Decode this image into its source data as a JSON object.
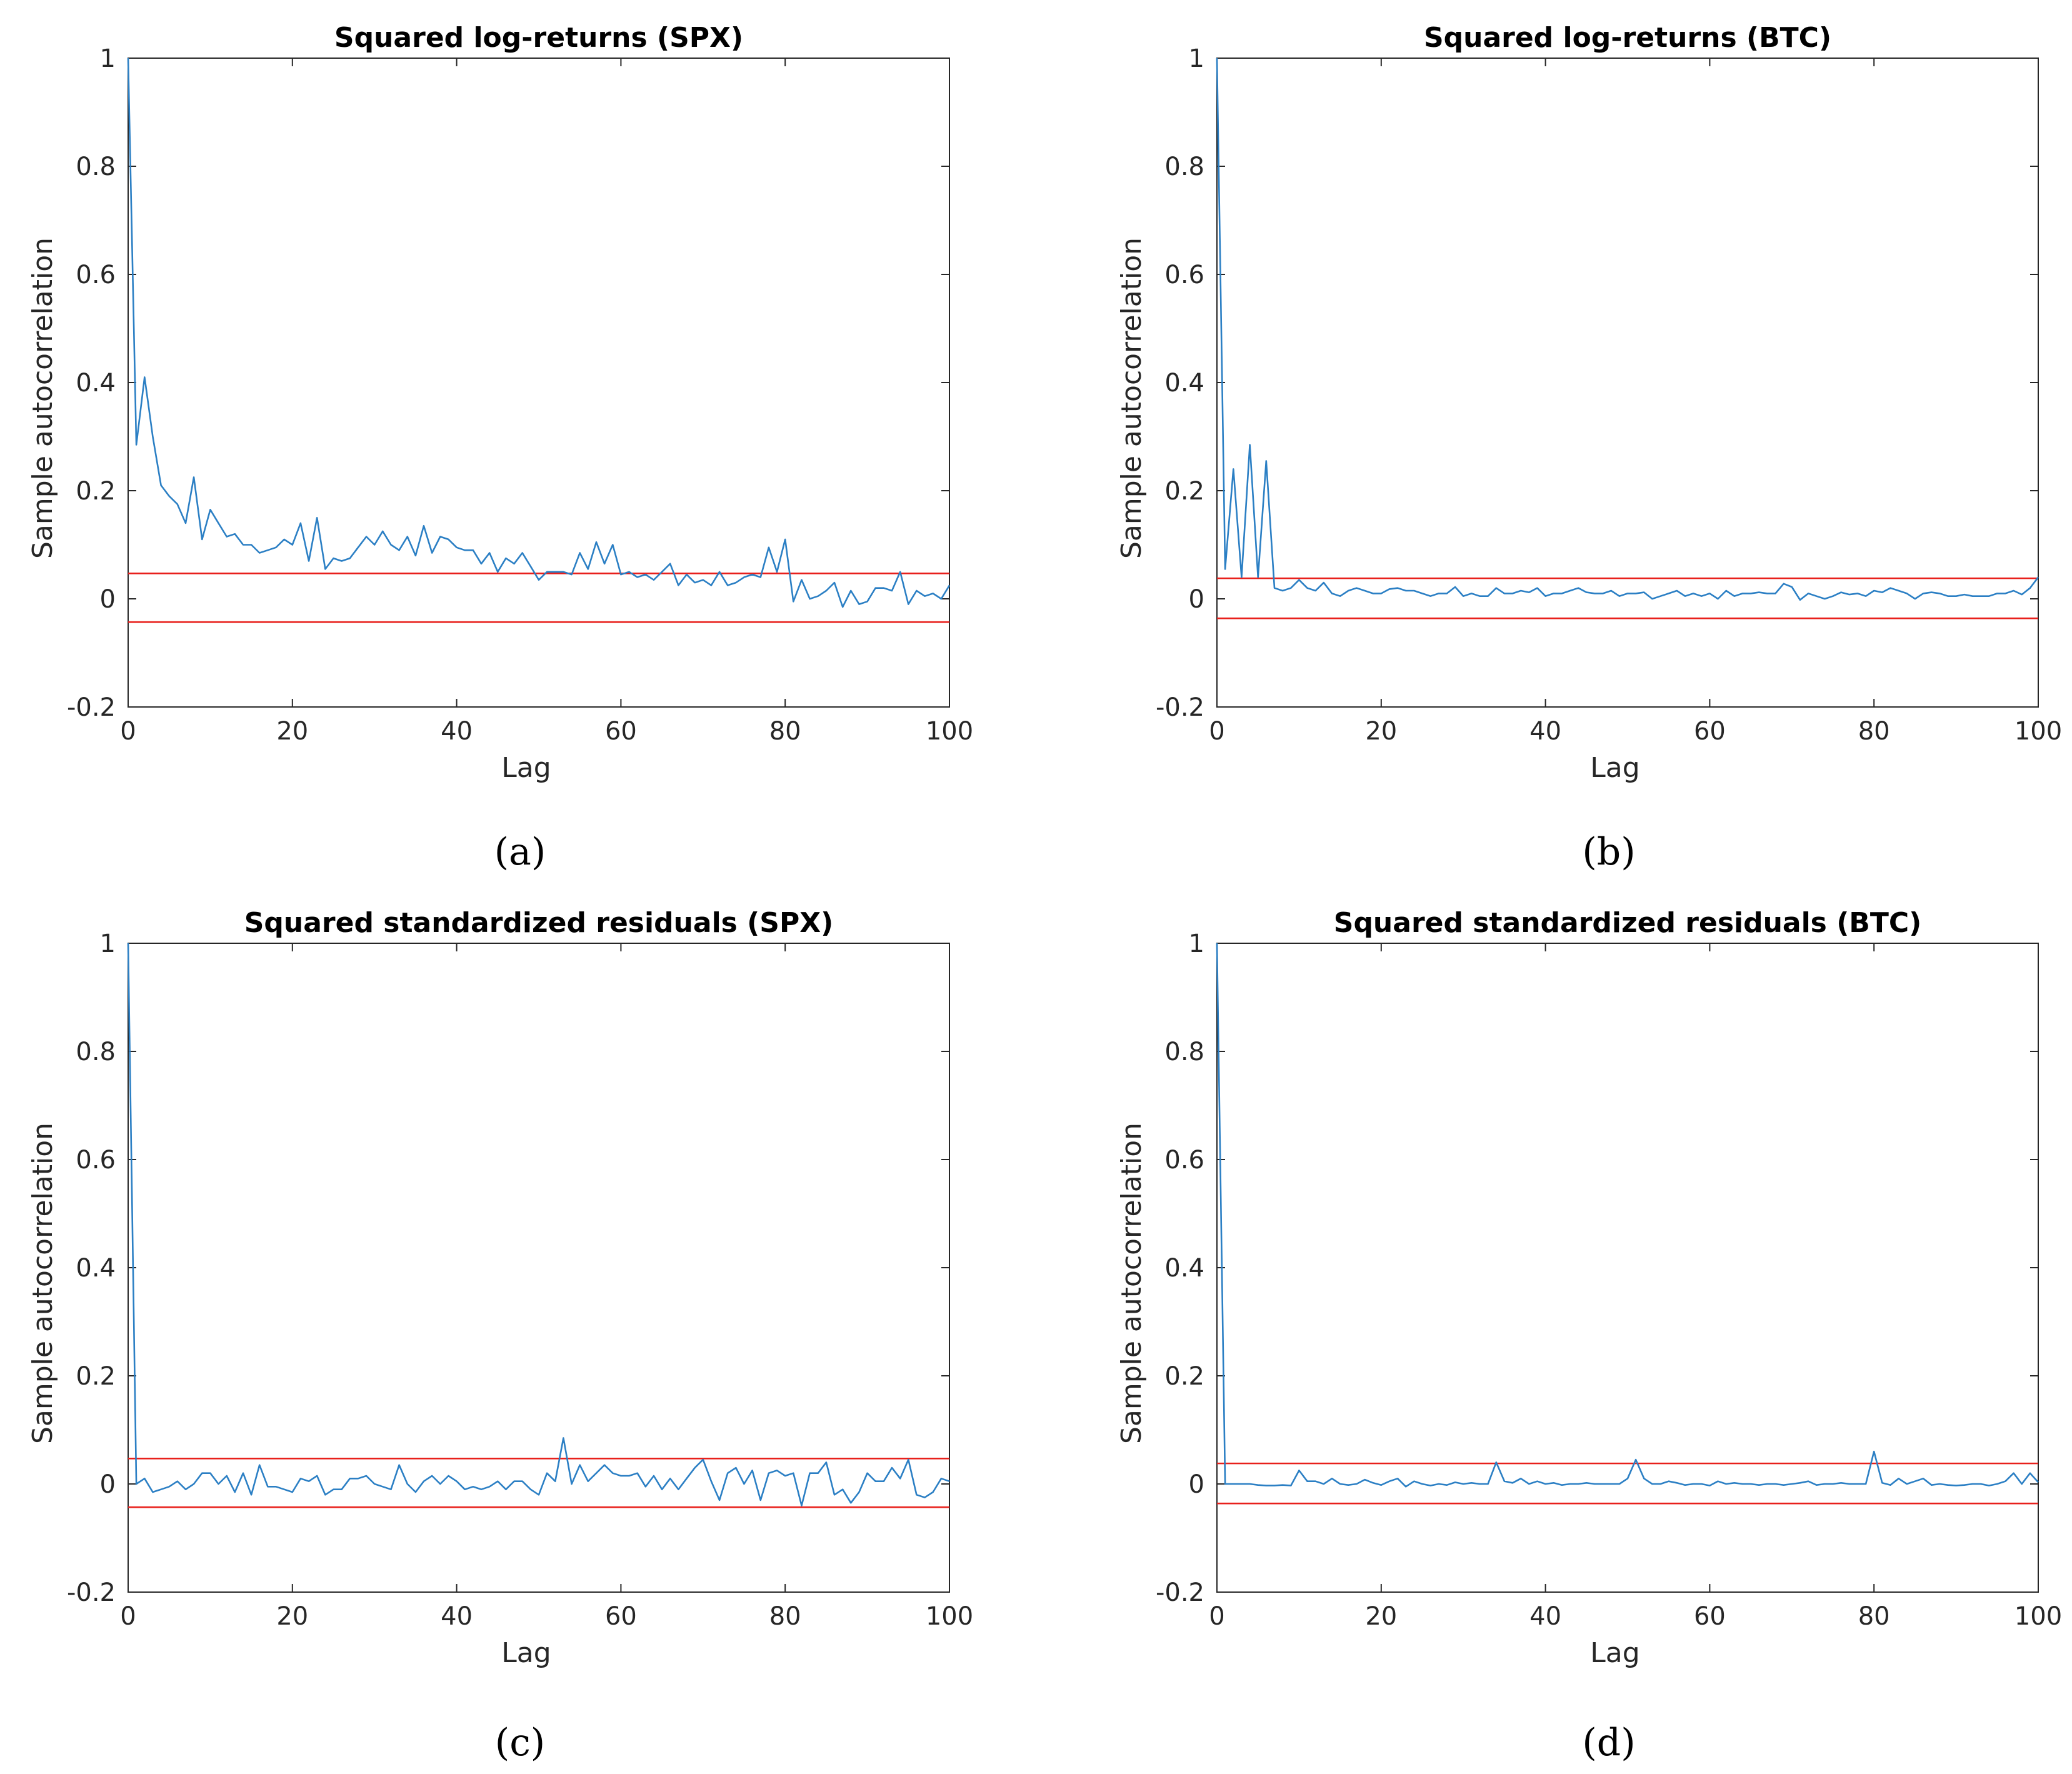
{
  "colors": {
    "series": "#2b7fc4",
    "bounds": "#e8201c",
    "axis": "#262626"
  },
  "chart_data": [
    {
      "type": "line",
      "title": "Squared log-returns (SPX)",
      "xlabel": "Lag",
      "ylabel": "Sample autocorrelation",
      "caption": "(a)",
      "xlim": [
        0,
        100
      ],
      "ylim": [
        -0.2,
        1
      ],
      "xticks": [
        "0",
        "20",
        "40",
        "60",
        "80",
        "100"
      ],
      "yticks": [
        "-0.2",
        "0",
        "0.2",
        "0.4",
        "0.6",
        "0.8",
        "1"
      ],
      "bounds": [
        0.047,
        -0.043
      ],
      "x": [
        0,
        1,
        2,
        3,
        4,
        5,
        6,
        7,
        8,
        9,
        10,
        11,
        12,
        13,
        14,
        15,
        16,
        17,
        18,
        19,
        20,
        21,
        22,
        23,
        24,
        25,
        26,
        27,
        28,
        29,
        30,
        31,
        32,
        33,
        34,
        35,
        36,
        37,
        38,
        39,
        40,
        41,
        42,
        43,
        44,
        45,
        46,
        47,
        48,
        49,
        50,
        51,
        52,
        53,
        54,
        55,
        56,
        57,
        58,
        59,
        60,
        61,
        62,
        63,
        64,
        65,
        66,
        67,
        68,
        69,
        70,
        71,
        72,
        73,
        74,
        75,
        76,
        77,
        78,
        79,
        80,
        81,
        82,
        83,
        84,
        85,
        86,
        87,
        88,
        89,
        90,
        91,
        92,
        93,
        94,
        95,
        96,
        97,
        98,
        99,
        100
      ],
      "values": [
        1.0,
        0.285,
        0.41,
        0.3,
        0.21,
        0.19,
        0.175,
        0.14,
        0.225,
        0.11,
        0.165,
        0.14,
        0.115,
        0.12,
        0.1,
        0.1,
        0.085,
        0.09,
        0.095,
        0.11,
        0.1,
        0.14,
        0.07,
        0.15,
        0.055,
        0.075,
        0.07,
        0.075,
        0.095,
        0.115,
        0.1,
        0.125,
        0.1,
        0.09,
        0.115,
        0.08,
        0.135,
        0.085,
        0.115,
        0.11,
        0.095,
        0.09,
        0.09,
        0.065,
        0.085,
        0.05,
        0.075,
        0.065,
        0.085,
        0.06,
        0.035,
        0.05,
        0.05,
        0.05,
        0.045,
        0.085,
        0.055,
        0.105,
        0.065,
        0.1,
        0.045,
        0.05,
        0.04,
        0.045,
        0.035,
        0.05,
        0.065,
        0.025,
        0.045,
        0.03,
        0.035,
        0.025,
        0.05,
        0.025,
        0.03,
        0.04,
        0.045,
        0.04,
        0.095,
        0.05,
        0.11,
        -0.005,
        0.035,
        0.0,
        0.005,
        0.015,
        0.03,
        -0.015,
        0.015,
        -0.01,
        -0.005,
        0.02,
        0.02,
        0.015,
        0.05,
        -0.01,
        0.015,
        0.005,
        0.01,
        0.0,
        0.025
      ]
    },
    {
      "type": "line",
      "title": "Squared log-returns (BTC)",
      "xlabel": "Lag",
      "ylabel": "Sample autocorrelation",
      "caption": "(b)",
      "xlim": [
        0,
        100
      ],
      "ylim": [
        -0.2,
        1
      ],
      "xticks": [
        "0",
        "20",
        "40",
        "60",
        "80",
        "100"
      ],
      "yticks": [
        "-0.2",
        "0",
        "0.2",
        "0.4",
        "0.6",
        "0.8",
        "1"
      ],
      "bounds": [
        0.038,
        -0.036
      ],
      "x": [
        0,
        1,
        2,
        3,
        4,
        5,
        6,
        7,
        8,
        9,
        10,
        11,
        12,
        13,
        14,
        15,
        16,
        17,
        18,
        19,
        20,
        21,
        22,
        23,
        24,
        25,
        26,
        27,
        28,
        29,
        30,
        31,
        32,
        33,
        34,
        35,
        36,
        37,
        38,
        39,
        40,
        41,
        42,
        43,
        44,
        45,
        46,
        47,
        48,
        49,
        50,
        51,
        52,
        53,
        54,
        55,
        56,
        57,
        58,
        59,
        60,
        61,
        62,
        63,
        64,
        65,
        66,
        67,
        68,
        69,
        70,
        71,
        72,
        73,
        74,
        75,
        76,
        77,
        78,
        79,
        80,
        81,
        82,
        83,
        84,
        85,
        86,
        87,
        88,
        89,
        90,
        91,
        92,
        93,
        94,
        95,
        96,
        97,
        98,
        99,
        100
      ],
      "values": [
        1.0,
        0.055,
        0.24,
        0.04,
        0.285,
        0.04,
        0.255,
        0.02,
        0.015,
        0.02,
        0.035,
        0.02,
        0.015,
        0.03,
        0.01,
        0.005,
        0.015,
        0.02,
        0.015,
        0.01,
        0.01,
        0.018,
        0.02,
        0.015,
        0.015,
        0.01,
        0.005,
        0.01,
        0.01,
        0.022,
        0.005,
        0.01,
        0.005,
        0.005,
        0.02,
        0.01,
        0.01,
        0.015,
        0.012,
        0.02,
        0.005,
        0.01,
        0.01,
        0.015,
        0.02,
        0.012,
        0.01,
        0.01,
        0.015,
        0.005,
        0.01,
        0.01,
        0.012,
        0.0,
        0.005,
        0.01,
        0.015,
        0.005,
        0.01,
        0.005,
        0.01,
        0.0,
        0.015,
        0.005,
        0.01,
        0.01,
        0.012,
        0.01,
        0.01,
        0.028,
        0.022,
        -0.002,
        0.01,
        0.005,
        0.0,
        0.005,
        0.012,
        0.008,
        0.01,
        0.005,
        0.015,
        0.012,
        0.02,
        0.015,
        0.01,
        0.0,
        0.01,
        0.012,
        0.01,
        0.005,
        0.005,
        0.008,
        0.005,
        0.005,
        0.005,
        0.01,
        0.01,
        0.015,
        0.008,
        0.02,
        0.04
      ]
    },
    {
      "type": "line",
      "title": "Squared standardized residuals (SPX)",
      "xlabel": "Lag",
      "ylabel": "Sample autocorrelation",
      "caption": "(c)",
      "xlim": [
        0,
        100
      ],
      "ylim": [
        -0.2,
        1
      ],
      "xticks": [
        "0",
        "20",
        "40",
        "60",
        "80",
        "100"
      ],
      "yticks": [
        "-0.2",
        "0",
        "0.2",
        "0.4",
        "0.6",
        "0.8",
        "1"
      ],
      "bounds": [
        0.047,
        -0.043
      ],
      "x": [
        0,
        1,
        2,
        3,
        4,
        5,
        6,
        7,
        8,
        9,
        10,
        11,
        12,
        13,
        14,
        15,
        16,
        17,
        18,
        19,
        20,
        21,
        22,
        23,
        24,
        25,
        26,
        27,
        28,
        29,
        30,
        31,
        32,
        33,
        34,
        35,
        36,
        37,
        38,
        39,
        40,
        41,
        42,
        43,
        44,
        45,
        46,
        47,
        48,
        49,
        50,
        51,
        52,
        53,
        54,
        55,
        56,
        57,
        58,
        59,
        60,
        61,
        62,
        63,
        64,
        65,
        66,
        67,
        68,
        69,
        70,
        71,
        72,
        73,
        74,
        75,
        76,
        77,
        78,
        79,
        80,
        81,
        82,
        83,
        84,
        85,
        86,
        87,
        88,
        89,
        90,
        91,
        92,
        93,
        94,
        95,
        96,
        97,
        98,
        99,
        100
      ],
      "values": [
        1.0,
        0.0,
        0.01,
        -0.015,
        -0.01,
        -0.005,
        0.005,
        -0.01,
        0.0,
        0.02,
        0.02,
        0.0,
        0.015,
        -0.015,
        0.02,
        -0.02,
        0.035,
        -0.005,
        -0.005,
        -0.01,
        -0.015,
        0.01,
        0.005,
        0.015,
        -0.02,
        -0.01,
        -0.01,
        0.01,
        0.01,
        0.015,
        0.0,
        -0.005,
        -0.01,
        0.035,
        0.0,
        -0.015,
        0.005,
        0.015,
        0.0,
        0.015,
        0.005,
        -0.01,
        -0.005,
        -0.01,
        -0.005,
        0.005,
        -0.01,
        0.005,
        0.005,
        -0.01,
        -0.02,
        0.02,
        0.005,
        0.085,
        0.0,
        0.035,
        0.005,
        0.02,
        0.035,
        0.02,
        0.015,
        0.015,
        0.02,
        -0.005,
        0.015,
        -0.01,
        0.01,
        -0.01,
        0.01,
        0.03,
        0.045,
        0.005,
        -0.03,
        0.02,
        0.03,
        0.0,
        0.025,
        -0.03,
        0.02,
        0.025,
        0.015,
        0.02,
        -0.04,
        0.02,
        0.02,
        0.04,
        -0.02,
        -0.01,
        -0.035,
        -0.015,
        0.02,
        0.005,
        0.005,
        0.03,
        0.01,
        0.045,
        -0.02,
        -0.025,
        -0.015,
        0.01,
        0.005
      ]
    },
    {
      "type": "line",
      "title": "Squared standardized residuals (BTC)",
      "xlabel": "Lag",
      "ylabel": "Sample autocorrelation",
      "caption": "(d)",
      "xlim": [
        0,
        100
      ],
      "ylim": [
        -0.2,
        1
      ],
      "xticks": [
        "0",
        "20",
        "40",
        "60",
        "80",
        "100"
      ],
      "yticks": [
        "-0.2",
        "0",
        "0.2",
        "0.4",
        "0.6",
        "0.8",
        "1"
      ],
      "bounds": [
        0.038,
        -0.036
      ],
      "x": [
        0,
        1,
        2,
        3,
        4,
        5,
        6,
        7,
        8,
        9,
        10,
        11,
        12,
        13,
        14,
        15,
        16,
        17,
        18,
        19,
        20,
        21,
        22,
        23,
        24,
        25,
        26,
        27,
        28,
        29,
        30,
        31,
        32,
        33,
        34,
        35,
        36,
        37,
        38,
        39,
        40,
        41,
        42,
        43,
        44,
        45,
        46,
        47,
        48,
        49,
        50,
        51,
        52,
        53,
        54,
        55,
        56,
        57,
        58,
        59,
        60,
        61,
        62,
        63,
        64,
        65,
        66,
        67,
        68,
        69,
        70,
        71,
        72,
        73,
        74,
        75,
        76,
        77,
        78,
        79,
        80,
        81,
        82,
        83,
        84,
        85,
        86,
        87,
        88,
        89,
        90,
        91,
        92,
        93,
        94,
        95,
        96,
        97,
        98,
        99,
        100
      ],
      "values": [
        1.0,
        0.0,
        0.0,
        0.0,
        0.0,
        -0.002,
        -0.003,
        -0.003,
        -0.002,
        -0.003,
        0.025,
        0.005,
        0.005,
        0.0,
        0.01,
        0.0,
        -0.002,
        0.0,
        0.008,
        0.002,
        -0.002,
        0.005,
        0.01,
        -0.005,
        0.005,
        0.0,
        -0.003,
        0.0,
        -0.002,
        0.003,
        0.0,
        0.002,
        0.0,
        0.0,
        0.04,
        0.005,
        0.002,
        0.01,
        0.0,
        0.005,
        0.0,
        0.002,
        -0.002,
        0.0,
        0.0,
        0.002,
        0.0,
        0.0,
        0.0,
        0.0,
        0.01,
        0.045,
        0.01,
        0.0,
        0.0,
        0.005,
        0.002,
        -0.002,
        0.0,
        0.0,
        -0.003,
        0.005,
        0.0,
        0.002,
        0.0,
        0.0,
        -0.002,
        0.0,
        0.0,
        -0.002,
        0.0,
        0.002,
        0.005,
        -0.002,
        0.0,
        0.0,
        0.002,
        0.0,
        0.0,
        0.0,
        0.06,
        0.002,
        -0.002,
        0.01,
        0.0,
        0.005,
        0.01,
        -0.002,
        0.0,
        -0.002,
        -0.003,
        -0.002,
        0.0,
        0.0,
        -0.003,
        0.0,
        0.005,
        0.02,
        0.0,
        0.02,
        0.003
      ]
    }
  ]
}
